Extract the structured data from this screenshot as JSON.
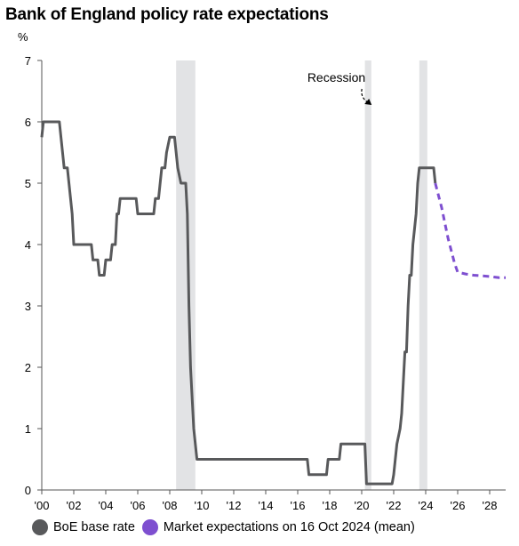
{
  "title": "Bank of England policy rate expectations",
  "unit": "%",
  "colors": {
    "base_rate": "#58595b",
    "market": "#7e4fd0",
    "recession": "#e2e3e5",
    "axis": "#555555"
  },
  "chart_data": {
    "type": "line",
    "xlim": [
      2000,
      2029
    ],
    "ylim": [
      0,
      7
    ],
    "x_ticks": [
      {
        "value": 2000,
        "label": "'00"
      },
      {
        "value": 2002,
        "label": "'02"
      },
      {
        "value": 2004,
        "label": "'04"
      },
      {
        "value": 2006,
        "label": "'06"
      },
      {
        "value": 2008,
        "label": "'08"
      },
      {
        "value": 2010,
        "label": "'10"
      },
      {
        "value": 2012,
        "label": "'12"
      },
      {
        "value": 2014,
        "label": "'14"
      },
      {
        "value": 2016,
        "label": "'16"
      },
      {
        "value": 2018,
        "label": "'18"
      },
      {
        "value": 2020,
        "label": "'20"
      },
      {
        "value": 2022,
        "label": "'22"
      },
      {
        "value": 2024,
        "label": "'24"
      },
      {
        "value": 2026,
        "label": "'26"
      },
      {
        "value": 2028,
        "label": "'28"
      }
    ],
    "y_ticks": [
      0,
      1,
      2,
      3,
      4,
      5,
      6,
      7
    ],
    "recessions": [
      [
        2008.4,
        2009.6
      ],
      [
        2020.2,
        2020.6
      ],
      [
        2023.6,
        2024.1
      ]
    ],
    "annotations": [
      {
        "text": "Recession",
        "x": 2020.4
      }
    ],
    "series": [
      {
        "name": "BoE base rate",
        "style": "solid",
        "points": [
          [
            2000.0,
            5.75
          ],
          [
            2000.1,
            6.0
          ],
          [
            2001.1,
            6.0
          ],
          [
            2001.2,
            5.75
          ],
          [
            2001.3,
            5.5
          ],
          [
            2001.4,
            5.25
          ],
          [
            2001.6,
            5.25
          ],
          [
            2001.7,
            5.0
          ],
          [
            2001.8,
            4.75
          ],
          [
            2001.9,
            4.5
          ],
          [
            2002.0,
            4.0
          ],
          [
            2003.1,
            4.0
          ],
          [
            2003.2,
            3.75
          ],
          [
            2003.5,
            3.75
          ],
          [
            2003.6,
            3.5
          ],
          [
            2003.9,
            3.5
          ],
          [
            2004.0,
            3.75
          ],
          [
            2004.3,
            3.75
          ],
          [
            2004.4,
            4.0
          ],
          [
            2004.6,
            4.0
          ],
          [
            2004.7,
            4.5
          ],
          [
            2004.8,
            4.5
          ],
          [
            2004.9,
            4.75
          ],
          [
            2005.9,
            4.75
          ],
          [
            2006.0,
            4.5
          ],
          [
            2007.0,
            4.5
          ],
          [
            2007.1,
            4.75
          ],
          [
            2007.3,
            4.75
          ],
          [
            2007.4,
            5.0
          ],
          [
            2007.5,
            5.25
          ],
          [
            2007.7,
            5.25
          ],
          [
            2007.8,
            5.5
          ],
          [
            2008.0,
            5.75
          ],
          [
            2008.3,
            5.75
          ],
          [
            2008.4,
            5.5
          ],
          [
            2008.5,
            5.25
          ],
          [
            2008.7,
            5.0
          ],
          [
            2009.0,
            5.0
          ],
          [
            2009.1,
            4.5
          ],
          [
            2009.2,
            3.0
          ],
          [
            2009.3,
            2.0
          ],
          [
            2009.5,
            1.0
          ],
          [
            2009.7,
            0.5
          ],
          [
            2016.6,
            0.5
          ],
          [
            2016.7,
            0.25
          ],
          [
            2017.8,
            0.25
          ],
          [
            2017.9,
            0.5
          ],
          [
            2018.6,
            0.5
          ],
          [
            2018.7,
            0.75
          ],
          [
            2020.2,
            0.75
          ],
          [
            2020.3,
            0.1
          ],
          [
            2021.9,
            0.1
          ],
          [
            2022.0,
            0.25
          ],
          [
            2022.1,
            0.5
          ],
          [
            2022.2,
            0.75
          ],
          [
            2022.4,
            1.0
          ],
          [
            2022.5,
            1.25
          ],
          [
            2022.6,
            1.75
          ],
          [
            2022.7,
            2.25
          ],
          [
            2022.8,
            2.25
          ],
          [
            2022.9,
            3.0
          ],
          [
            2023.0,
            3.5
          ],
          [
            2023.1,
            3.5
          ],
          [
            2023.2,
            4.0
          ],
          [
            2023.3,
            4.25
          ],
          [
            2023.4,
            4.5
          ],
          [
            2023.5,
            5.0
          ],
          [
            2023.6,
            5.25
          ],
          [
            2024.5,
            5.25
          ],
          [
            2024.6,
            5.0
          ]
        ]
      },
      {
        "name": "Market expectations on 16 Oct 2024 (mean)",
        "style": "dashed",
        "points": [
          [
            2024.6,
            5.0
          ],
          [
            2025.0,
            4.6
          ],
          [
            2025.4,
            4.1
          ],
          [
            2025.8,
            3.7
          ],
          [
            2026.0,
            3.55
          ],
          [
            2026.5,
            3.52
          ],
          [
            2027.0,
            3.5
          ],
          [
            2027.5,
            3.49
          ],
          [
            2028.0,
            3.48
          ],
          [
            2028.6,
            3.46
          ],
          [
            2029.0,
            3.46
          ]
        ]
      }
    ],
    "legend_position": "bottom"
  },
  "legend": [
    {
      "label": "BoE base rate"
    },
    {
      "label": "Market expectations on 16 Oct 2024 (mean)"
    }
  ]
}
